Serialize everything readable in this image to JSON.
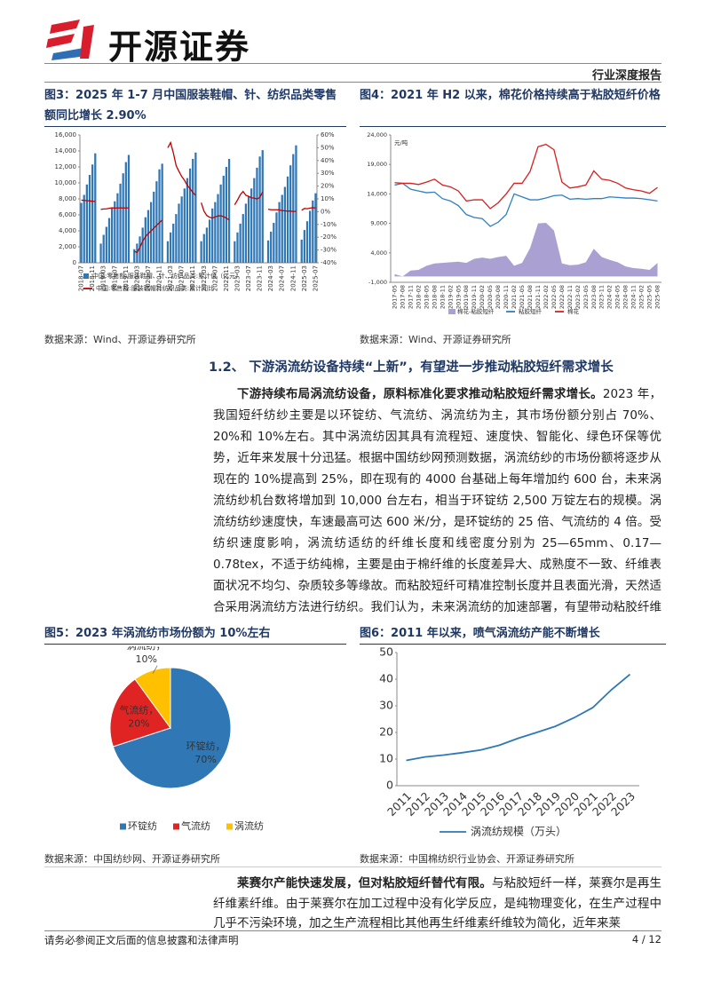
{
  "header": {
    "brand": "开源证券",
    "report_type": "行业深度报告"
  },
  "chart_data": [
    {
      "type": "bar",
      "title": "图3：2025 年 1-7 月中国服装鞋帽、针、纺织品类零售额同比增长 2.90%",
      "categories": [
        "2018-07",
        null,
        null,
        null,
        "2018-11",
        null,
        null,
        null,
        "2019-03",
        null,
        null,
        null,
        "2019-07",
        null,
        null,
        null,
        "2019-11",
        null,
        null,
        null,
        "2020-03",
        null,
        null,
        null,
        "2020-07",
        null,
        null,
        null,
        "2020-11",
        null,
        null,
        null,
        "2021-03",
        null,
        null,
        null,
        "2021-07",
        null,
        null,
        null,
        "2021-11",
        null,
        null,
        null,
        "2022-03",
        null,
        null,
        null,
        "2022-07",
        null,
        null,
        null,
        "2022-11",
        null,
        null,
        null,
        "2023-03",
        null,
        null,
        null,
        "2023-07",
        null,
        null,
        null,
        "2023-11",
        null,
        null,
        null,
        "2024-03",
        null,
        null,
        null,
        "2024-07",
        null,
        null,
        null,
        "2024-11",
        null,
        null,
        null,
        "2025-03",
        null,
        null,
        null,
        "2025-07"
      ],
      "series": [
        {
          "name": "中国:零售额:服装鞋帽、针、纺织品类:累计值（亿元）",
          "type": "bar",
          "color": "#2f77b5",
          "values": [
            7500,
            8500,
            9800,
            11000,
            12300,
            13700,
            null,
            2400,
            3500,
            4500,
            5600,
            6800,
            7700,
            8700,
            9900,
            11200,
            12600,
            13500,
            null,
            1700,
            2400,
            3300,
            4400,
            5700,
            6600,
            7600,
            8900,
            10200,
            11700,
            12400,
            null,
            2700,
            3800,
            4900,
            6100,
            7400,
            8300,
            9300,
            10600,
            11800,
            13000,
            13800,
            null,
            2700,
            3600,
            4400,
            5400,
            6800,
            7600,
            8600,
            9800,
            10900,
            12000,
            13000,
            null,
            2700,
            3800,
            4900,
            6100,
            7400,
            8300,
            9300,
            10600,
            11900,
            13300,
            14100,
            null,
            2800,
            3900,
            5000,
            6300,
            7600,
            8500,
            9500,
            10800,
            12200,
            13600,
            14700,
            null,
            2900,
            4100,
            5200,
            6500,
            7800,
            8700
          ]
        },
        {
          "name": "中国:零售额:服装鞋帽针纺织品类:累计同比",
          "type": "line",
          "axis": "y2",
          "color": "#c00000",
          "values": [
            9.0,
            8.8,
            8.6,
            8.4,
            8.2,
            8.0,
            null,
            1.8,
            2.1,
            2.2,
            2.6,
            3.0,
            2.8,
            2.9,
            2.9,
            2.9,
            2.9,
            2.9,
            null,
            -30.9,
            -32.0,
            -28.0,
            -23.0,
            -19.6,
            -17.1,
            -15.2,
            -12.9,
            -10.7,
            -8.6,
            -6.6,
            null,
            50,
            54,
            46,
            36,
            31.6,
            27.5,
            24.5,
            20.6,
            18.0,
            15.0,
            12.7,
            null,
            7.0,
            0.3,
            -3.0,
            -4.4,
            -5.0,
            -4.1,
            -3.4,
            -3.2,
            -3.9,
            -5.1,
            -6.5,
            null,
            5.4,
            9.1,
            13.2,
            15.8,
            12.8,
            12.0,
            10.8,
            10.6,
            9.9,
            11.2,
            15.4,
            null,
            1.9,
            1.5,
            1.5,
            1.5,
            1.3,
            0.9,
            0.6,
            0.4,
            0.4,
            0.1,
            0.3,
            null,
            1.1,
            2.5,
            2.3,
            2.8,
            3.1,
            2.9
          ]
        }
      ],
      "ylim": [
        0,
        16000
      ],
      "yticks": [
        0,
        {
          "value": 2000,
          "label": "2,000"
        },
        {
          "value": 4000,
          "label": "4,000"
        },
        {
          "value": 6000,
          "label": "6,000"
        },
        {
          "value": 8000,
          "label": "8,000"
        },
        {
          "value": 10000,
          "label": "10,000"
        },
        {
          "value": 12000,
          "label": "12,000"
        },
        {
          "value": 14000,
          "label": "14,000"
        },
        {
          "value": 16000,
          "label": "16,000"
        }
      ],
      "y2lim": [
        -40,
        60
      ],
      "y2ticks": [
        {
          "value": -40,
          "label": "-40%"
        },
        {
          "value": -30,
          "label": "-30%"
        },
        {
          "value": -20,
          "label": "-20%"
        },
        {
          "value": -10,
          "label": "-10%"
        },
        {
          "value": 0,
          "label": "0%"
        },
        {
          "value": 10,
          "label": "10%"
        },
        {
          "value": 20,
          "label": "20%"
        },
        {
          "value": 30,
          "label": "30%"
        },
        {
          "value": 40,
          "label": "40%"
        },
        {
          "value": 50,
          "label": "50%"
        },
        {
          "value": 60,
          "label": "60%"
        }
      ],
      "grid": false,
      "source": "数据来源：Wind、开源证券研究所"
    },
    {
      "type": "line",
      "title": "图4：2021 年 H2 以来，棉花价格持续高于粘胶短纤价格",
      "y_unit": "元/吨",
      "categories": [
        "2017-05",
        "2017-08",
        "2017-11",
        "2018-02",
        "2018-05",
        "2018-08",
        "2018-11",
        "2019-02",
        "2019-05",
        "2019-08",
        "2019-11",
        "2020-02",
        "2020-05",
        "2020-08",
        "2020-11",
        "2021-02",
        "2021-05",
        "2021-08",
        "2021-11",
        "2022-02",
        "2022-05",
        "2022-08",
        "2022-11",
        "2023-02",
        "2023-05",
        "2023-08",
        "2023-11",
        "2024-02",
        "2024-05",
        "2024-08",
        "2024-11",
        "2025-02",
        "2025-05",
        "2025-08"
      ],
      "series": [
        {
          "name": "棉花-粘胶短纤",
          "type": "area",
          "color": "#aaa0d2",
          "values": [
            400,
            0,
            1000,
            1100,
            1800,
            2200,
            2300,
            2400,
            2500,
            2300,
            3000,
            3200,
            3000,
            3300,
            3500,
            1800,
            2300,
            4800,
            9000,
            9100,
            7800,
            2200,
            1900,
            2000,
            2400,
            4700,
            3300,
            2800,
            2400,
            1700,
            1400,
            1300,
            1100,
            2300
          ]
        },
        {
          "name": "粘胶短纤",
          "type": "line",
          "color": "#2f7fc1",
          "values": [
            15500,
            15800,
            14800,
            14500,
            14200,
            14300,
            13200,
            12800,
            12000,
            10500,
            10000,
            9800,
            8500,
            9200,
            10500,
            14000,
            13500,
            13000,
            13000,
            13300,
            13700,
            13800,
            13100,
            13200,
            13100,
            13200,
            13200,
            13500,
            13400,
            13300,
            13300,
            13200,
            13000,
            12800
          ]
        },
        {
          "name": "棉花",
          "type": "line",
          "color": "#d62020",
          "values": [
            15900,
            15800,
            15800,
            15600,
            16000,
            16500,
            15500,
            15200,
            14500,
            12800,
            13000,
            13000,
            11500,
            12500,
            14000,
            15800,
            15800,
            17800,
            22000,
            22400,
            21500,
            16000,
            15000,
            15200,
            15500,
            17900,
            16500,
            16300,
            15800,
            15000,
            14700,
            14500,
            14100,
            15100
          ]
        }
      ],
      "ylim": [
        -1000,
        24000
      ],
      "yticks": [
        {
          "value": -1000,
          "label": "-1,000"
        },
        {
          "value": 4000,
          "label": "4,000"
        },
        {
          "value": 9000,
          "label": "9,000"
        },
        {
          "value": 14000,
          "label": "14,000"
        },
        {
          "value": 19000,
          "label": "19,000"
        },
        {
          "value": 24000,
          "label": "24,000"
        }
      ],
      "grid": false,
      "source": "数据来源：Wind、开源证券研究所"
    },
    {
      "type": "pie",
      "title": "图5：2023 年涡流纺市场份额为 10%左右",
      "categories": [
        "环锭纺",
        "气流纺",
        "涡流纺"
      ],
      "slice_labels": [
        "环锭纺，",
        "气流纺，",
        "涡流纺，"
      ],
      "values": [
        70,
        20,
        10
      ],
      "value_labels": [
        "70%",
        "20%",
        "10%"
      ],
      "colors": [
        "#2f77b5",
        "#e02424",
        "#ffc000"
      ],
      "source": "数据来源：中国纺纱网、开源证券研究所"
    },
    {
      "type": "line",
      "title": "图6：2011 年以来，喷气涡流纺产能不断增长",
      "categories": [
        "2011",
        "2012",
        "2013",
        "2014",
        "2015",
        "2016",
        "2017",
        "2018",
        "2019",
        "2020",
        "2021",
        "2022",
        "2023"
      ],
      "series": [
        {
          "name": "涡流纺规模（万头）",
          "type": "line",
          "color": "#2f77b5",
          "values": [
            9.5,
            10.8,
            11.5,
            12.4,
            13.4,
            15.2,
            17.8,
            20,
            22.3,
            25.5,
            29.3,
            36,
            41.8
          ]
        }
      ],
      "ylim": [
        0,
        50
      ],
      "yticks": [
        0,
        10,
        20,
        30,
        40,
        50
      ],
      "grid": false,
      "source": "数据来源：中国棉纺织行业协会、开源证券研究所"
    }
  ],
  "section": {
    "heading": "1.2、 下游涡流纺设备持续“上新”，有望进一步推动粘胶短纤需求增长"
  },
  "paragraphs": [
    {
      "lead": "下游持续布局涡流纺设备，原料标准化要求推动粘胶短纤需求增长。",
      "body": "2023 年，我国短纤纺纱主要是以环锭纺、气流纺、涡流纺为主，其市场份额分别占 70%、20%和 10%左右。其中涡流纺因其具有流程短、速度快、智能化、绿色环保等优势，近年来发展十分迅猛。根据中国纺纱网预测数据，涡流纺纱的市场份额将逐步从现在的 10%提高到 25%，即在现有的 4000 台基础上每年增加约 600 台，未来涡流纺纱机台数将增加到 10,000 台左右，相当于环锭纺 2,500 万锭左右的规模。涡流纺纺纱速度快，车速最高可达 600 米/分，是环锭纺的 25 倍、气流纺的 4 倍。受纺织速度影响，涡流纺适纺的纤维长度和线密度分别为 25—65mm、0.17—0.78tex，不适于纺纯棉，主要是由于棉纤维的长度差异大、成熟度不一致、纤维表面状况不均匀、杂质较多等缘故。而粘胶短纤可精准控制长度并且表面光滑，天然适合采用涡流纺方法进行纺织。我们认为，未来涡流纺的加速部署，有望带动粘胶纤维的需求增长。"
    },
    {
      "lead": "莱赛尔产能快速发展，但对粘胶短纤替代有限。",
      "body": "与粘胶短纤一样，莱赛尔是再生纤维素纤维。由于莱赛尔在加工过程中没有化学反应，是纯物理变化，在生产过程中几乎不污染环境，加之生产流程相比其他再生纤维素纤维较为简化，近年来莱"
    }
  ],
  "footer": {
    "disclaimer": "请务必参阅正文后面的信息披露和法律声明",
    "page": "4 / 12"
  }
}
